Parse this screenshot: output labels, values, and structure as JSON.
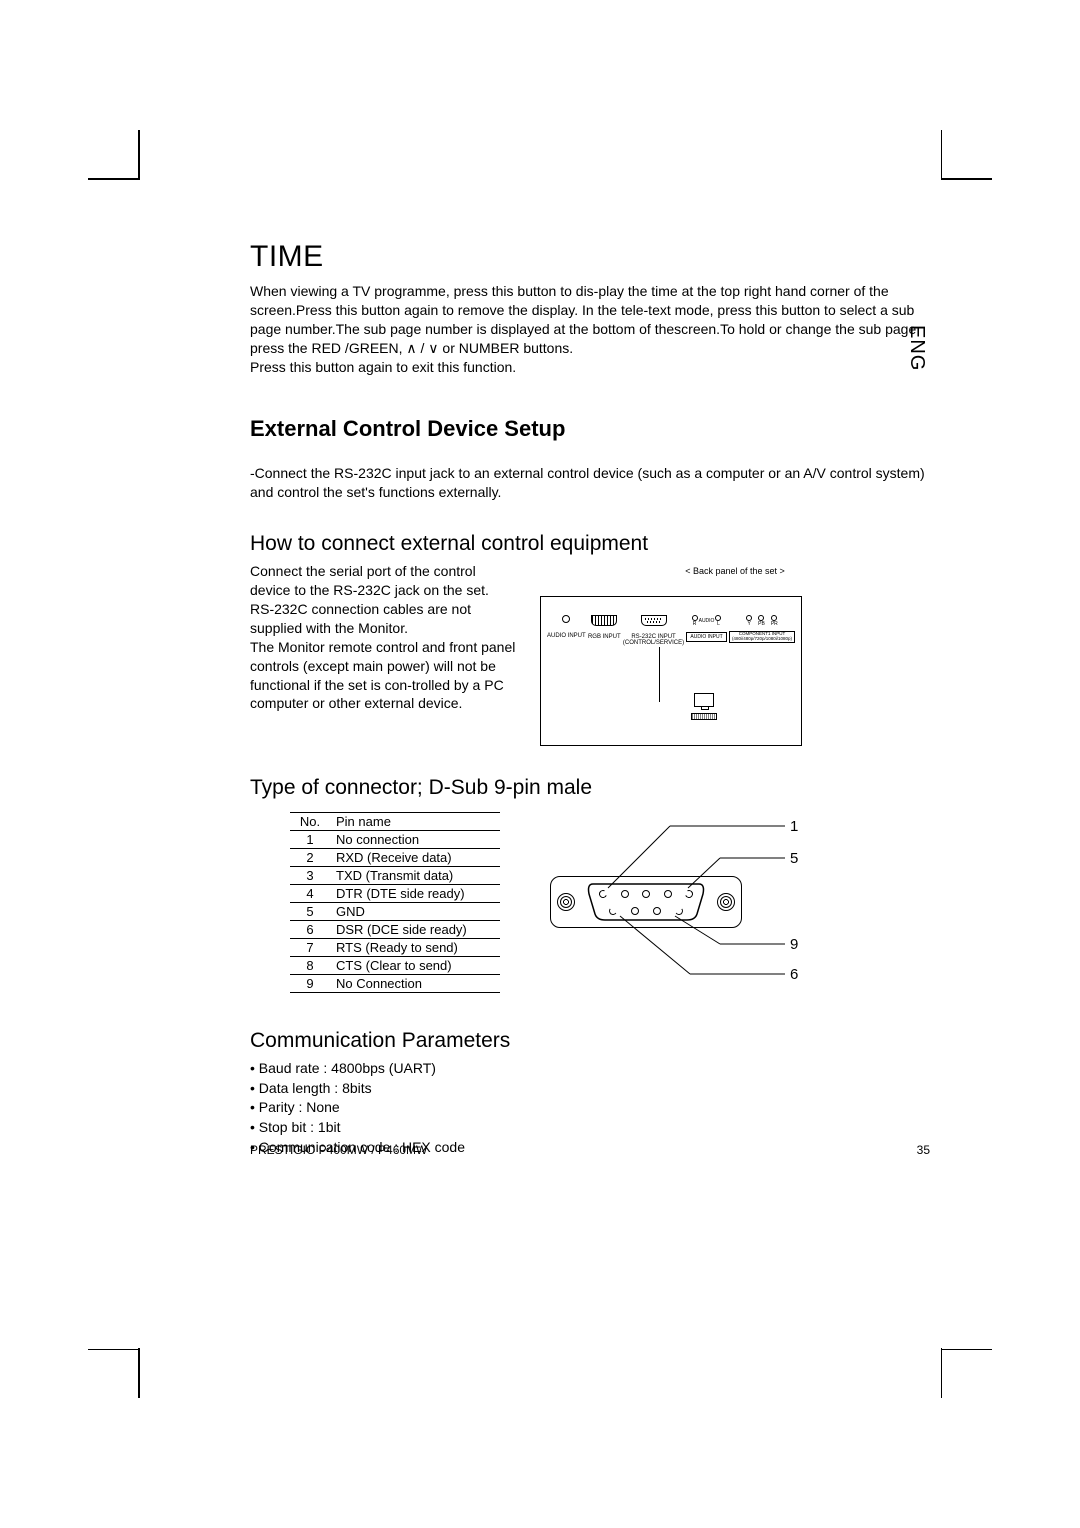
{
  "lang_label": "ENG",
  "time": {
    "heading": "TIME",
    "para1": "When viewing a TV programme, press this button to dis-play the time at the top right hand corner of the screen.Press this button again to remove the display. In the tele-text mode, press this button to select a sub page number.The sub page number is displayed at the bottom of thescreen.To hold or change the sub page, press the RED /GREEN, ∧ / ∨ or NUMBER buttons.",
    "para2": "Press this button again to exit this function."
  },
  "external": {
    "heading": "External Control Device Setup",
    "para": "-Connect the RS-232C input jack to an external control device (such as a computer or an A/V control system) and control the set's functions externally."
  },
  "howto": {
    "heading": "How to connect external control equipment",
    "para1": "Connect the serial port of the control device to the RS-232C jack on the set.",
    "para2": "RS-232C connection cables are not supplied with the Monitor.",
    "para3": "The Monitor remote control and front panel controls (except main power) will not be functional if the set is con-trolled by a PC computer or other external device.",
    "panel_label": "< Back panel of the set >",
    "panel": {
      "audio_input": "AUDIO INPUT",
      "rgb_input": "RGB INPUT",
      "rs232": "RS-232C INPUT\n(CONTROL/SERVICE)",
      "audio_r": "R",
      "audio": "AUDIO",
      "audio_l": "L",
      "audio_input2": "AUDIO INPUT",
      "comp_y": "Y",
      "comp_pb": "PB",
      "comp_pr": "PR",
      "comp_label": "COMPONENT1 INPUT\n(480i/480p/720p/1080i/1080p)"
    }
  },
  "connector": {
    "heading": "Type of connector; D-Sub 9-pin male",
    "table": {
      "head_no": "No.",
      "head_name": "Pin name",
      "rows": [
        {
          "no": "1",
          "name": "No connection"
        },
        {
          "no": "2",
          "name": "RXD (Receive data)"
        },
        {
          "no": "3",
          "name": "TXD (Transmit data)"
        },
        {
          "no": "4",
          "name": "DTR (DTE side ready)"
        },
        {
          "no": "5",
          "name": "GND"
        },
        {
          "no": "6",
          "name": "DSR (DCE side ready)"
        },
        {
          "no": "7",
          "name": "RTS (Ready to send)"
        },
        {
          "no": "8",
          "name": "CTS (Clear to send)"
        },
        {
          "no": "9",
          "name": "No Connection"
        }
      ]
    },
    "callouts": {
      "p1": "1",
      "p5": "5",
      "p6": "6",
      "p9": "9"
    }
  },
  "comm": {
    "heading": "Communication Parameters",
    "items": [
      "• Baud rate : 4800bps (UART)",
      "• Data length : 8bits",
      "• Parity : None",
      "• Stop bit : 1bit",
      "• Communication code : HEX code"
    ]
  },
  "footer": {
    "model": "PRESTIGIO P400MW / P460MW",
    "page": "35"
  }
}
